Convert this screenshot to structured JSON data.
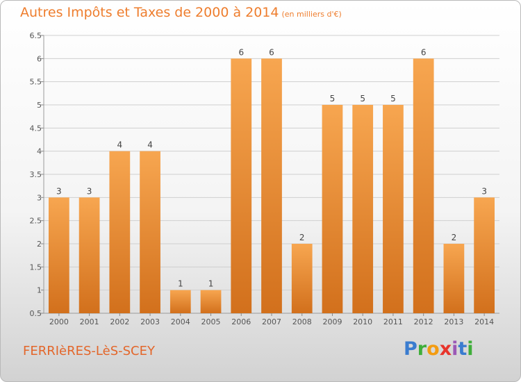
{
  "header": {
    "title": "Autres Impôts et Taxes de 2000 à 2014",
    "subtitle": "(en milliers d'€)"
  },
  "footer": {
    "commune": "FERRIèRES-LèS-SCEY",
    "logo_letters": [
      "P",
      "r",
      "o",
      "x",
      "i",
      "t",
      "i"
    ],
    "logo_colors": [
      "#3a7ccf",
      "#3fae3a",
      "#f39c12",
      "#e8342b",
      "#9b59b6",
      "#3a7ccf",
      "#3fae3a"
    ]
  },
  "colors": {
    "bar_light": "#f7a650",
    "bar_dark": "#d2701c",
    "grid": "#cfcfcf",
    "title": "#ee7d2d"
  },
  "chart_data": {
    "type": "bar",
    "categories": [
      "2000",
      "2001",
      "2002",
      "2003",
      "2004",
      "2005",
      "2006",
      "2007",
      "2008",
      "2009",
      "2010",
      "2011",
      "2012",
      "2013",
      "2014"
    ],
    "values": [
      3,
      3,
      4,
      4,
      1,
      1,
      6,
      6,
      2,
      5,
      5,
      5,
      6,
      2,
      3
    ],
    "value_labels": [
      "3",
      "3",
      "4",
      "4",
      "1",
      "1",
      "6",
      "6",
      "2",
      "5",
      "5",
      "5",
      "6",
      "2",
      "3"
    ],
    "yticks": [
      0.5,
      1,
      1.5,
      2,
      2.5,
      3,
      3.5,
      4,
      4.5,
      5,
      5.5,
      6,
      6.5
    ],
    "ytick_labels": [
      "0.5",
      "1",
      "1.5",
      "2",
      "2.5",
      "3",
      "3.5",
      "4",
      "4.5",
      "5",
      "5.5",
      "6",
      "6.5"
    ],
    "ylim": [
      0.5,
      6.5
    ],
    "grid": true,
    "title": "Autres Impôts et Taxes de 2000 à 2014",
    "xlabel": "",
    "ylabel": ""
  }
}
